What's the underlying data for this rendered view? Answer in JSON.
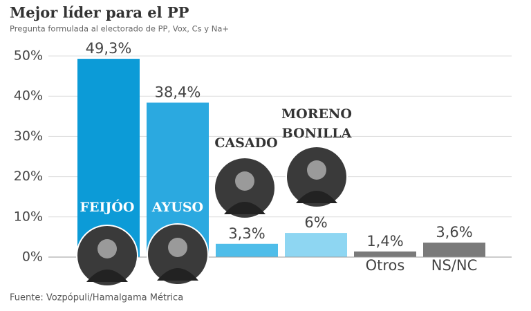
{
  "chart_data": {
    "type": "bar",
    "title": "Mejor líder para el PP",
    "subtitle": "Pregunta formulada al electorado de PP, Vox, Cs y Na+",
    "source": "Fuente: Vozpópuli/Hamalgama Métrica",
    "categories": [
      "FEIJÓO",
      "AYUSO",
      "CASADO",
      "MORENO BONILLA",
      "Otros",
      "NS/NC"
    ],
    "values": [
      49.3,
      38.4,
      3.3,
      6,
      1.4,
      3.6
    ],
    "value_labels": [
      "49,3%",
      "38,4%",
      "3,3%",
      "6%",
      "1,4%",
      "3,6%"
    ],
    "colors": [
      "#0c9bd7",
      "#2ba9e0",
      "#4fbde9",
      "#8ed6f2",
      "#7a7a7a",
      "#7a7a7a"
    ],
    "ylim": [
      0,
      50
    ],
    "yticks": [
      {
        "value": 0,
        "label": "0%"
      },
      {
        "value": 10,
        "label": "10%"
      },
      {
        "value": 20,
        "label": "20%"
      },
      {
        "value": 30,
        "label": "30%"
      },
      {
        "value": 40,
        "label": "40%"
      },
      {
        "value": 50,
        "label": "50%"
      }
    ],
    "grid": true
  }
}
